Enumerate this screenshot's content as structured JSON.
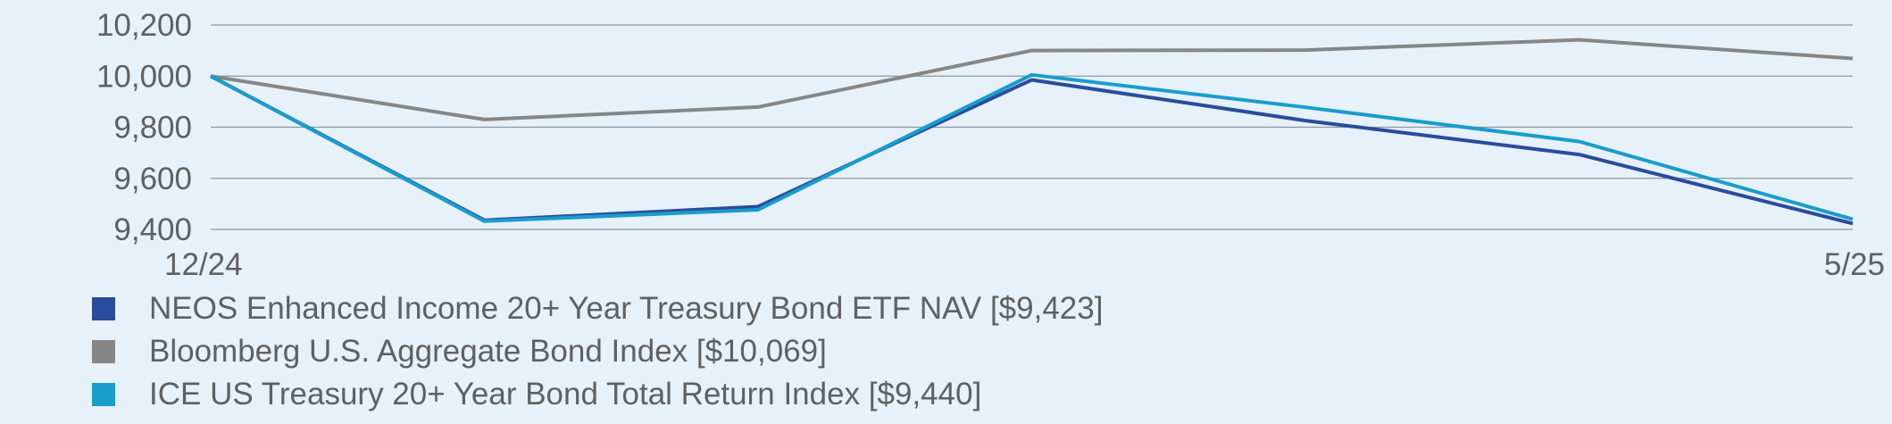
{
  "chart_data": {
    "type": "line",
    "x_tick_labels": [
      "12/24",
      "5/25"
    ],
    "x_count": 7,
    "ylim": [
      9400,
      10200
    ],
    "yticks": [
      9400,
      9600,
      9800,
      10000,
      10200
    ],
    "ytick_labels": [
      "9,400",
      "9,600",
      "9,800",
      "10,000",
      "10,200"
    ],
    "grid": true,
    "legend_position": "bottom",
    "series": [
      {
        "name": "NEOS Enhanced Income 20+ Year Treasury Bond ETF NAV [$9,423]",
        "color": "#2a4c9c",
        "values": [
          10000,
          9436,
          9489,
          9985,
          9826,
          9693,
          9423
        ]
      },
      {
        "name": "Bloomberg U.S. Aggregate Bond Index [$10,069]",
        "color": "#868686",
        "values": [
          10000,
          9830,
          9879,
          10100,
          10102,
          10142,
          10069
        ]
      },
      {
        "name": "ICE US Treasury 20+ Year Bond Total Return Index [$9,440]",
        "color": "#1a9ccc",
        "values": [
          10000,
          9432,
          9477,
          10005,
          9878,
          9744,
          9440
        ]
      }
    ]
  }
}
